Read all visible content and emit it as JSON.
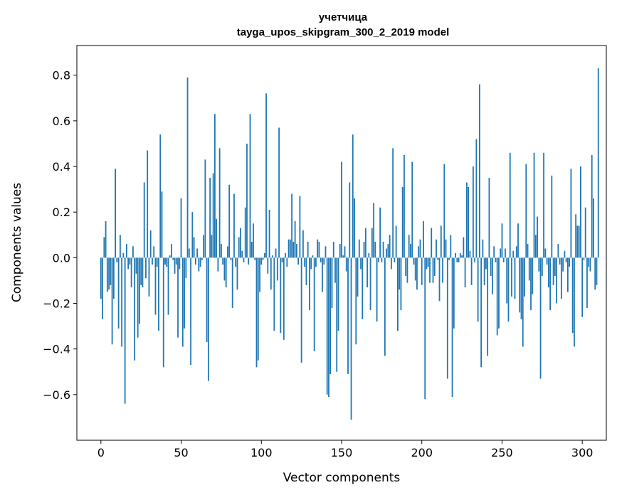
{
  "chart_data": {
    "type": "bar",
    "title_line1": "учетчица",
    "title_line2": "tayga_upos_skipgram_300_2_2019 model",
    "xlabel": "Vector components",
    "ylabel": "Components values",
    "xlim": [
      -15,
      315
    ],
    "ylim": [
      -0.8,
      0.93
    ],
    "xticks": [
      0,
      50,
      100,
      150,
      200,
      250,
      300
    ],
    "yticks": [
      -0.6,
      -0.4,
      -0.2,
      0.0,
      0.2,
      0.4,
      0.6,
      0.8
    ],
    "xtick_labels": [
      "0",
      "50",
      "100",
      "150",
      "200",
      "250",
      "300"
    ],
    "ytick_labels": [
      "−0.6",
      "−0.4",
      "−0.2",
      "0.0",
      "0.2",
      "0.4",
      "0.6",
      "0.8"
    ],
    "bar_color": "#1f77b4",
    "values": [
      -0.18,
      -0.27,
      0.09,
      0.16,
      -0.15,
      -0.14,
      -0.12,
      -0.38,
      -0.18,
      0.39,
      -0.02,
      -0.31,
      0.1,
      -0.39,
      0.02,
      -0.64,
      0.06,
      -0.05,
      -0.03,
      -0.13,
      0.05,
      -0.45,
      -0.07,
      -0.35,
      -0.29,
      -0.12,
      -0.13,
      0.33,
      -0.09,
      0.47,
      -0.17,
      0.12,
      -0.03,
      0.05,
      -0.25,
      -0.04,
      -0.32,
      0.54,
      0.29,
      -0.48,
      -0.03,
      -0.04,
      -0.25,
      0.01,
      0.06,
      -0.01,
      -0.07,
      -0.03,
      -0.35,
      -0.05,
      0.26,
      -0.39,
      -0.31,
      -0.09,
      0.79,
      0.04,
      -0.47,
      0.2,
      0.09,
      -0.03,
      0.04,
      -0.06,
      -0.04,
      -0.01,
      0.1,
      0.43,
      -0.37,
      -0.54,
      0.35,
      0.1,
      0.37,
      0.63,
      0.17,
      -0.06,
      0.48,
      0.06,
      -0.03,
      -0.1,
      -0.13,
      0.05,
      0.32,
      -0.01,
      -0.22,
      0.28,
      -0.04,
      -0.14,
      0.09,
      0.13,
      0.03,
      -0.02,
      0.22,
      0.5,
      -0.03,
      0.63,
      0.07,
      0.15,
      -0.01,
      -0.48,
      -0.45,
      -0.15,
      -0.03,
      -0.01,
      0.02,
      0.72,
      -0.07,
      0.21,
      -0.14,
      0.01,
      -0.32,
      0.04,
      -0.1,
      0.57,
      -0.33,
      -0.02,
      -0.36,
      0.02,
      -0.04,
      0.08,
      0.08,
      0.28,
      0.07,
      0.16,
      0.06,
      -0.03,
      0.27,
      -0.46,
      0.12,
      -0.04,
      -0.12,
      0.07,
      -0.23,
      -0.05,
      0.01,
      -0.41,
      -0.04,
      0.08,
      0.07,
      -0.02,
      -0.15,
      -0.03,
      0.05,
      -0.6,
      -0.61,
      -0.51,
      -0.22,
      0.07,
      -0.11,
      -0.5,
      -0.32,
      0.06,
      0.42,
      0.01,
      0.05,
      -0.06,
      -0.51,
      0.33,
      -0.71,
      0.54,
      0.26,
      -0.38,
      -0.17,
      0.08,
      -0.05,
      -0.27,
      0.07,
      0.13,
      -0.13,
      0.02,
      -0.23,
      0.13,
      0.24,
      0.07,
      -0.28,
      -0.02,
      0.22,
      -0.02,
      0.07,
      -0.43,
      0.04,
      0.06,
      0.1,
      -0.05,
      0.48,
      -0.02,
      0.14,
      -0.32,
      -0.14,
      -0.23,
      0.31,
      0.45,
      -0.08,
      -0.11,
      0.1,
      0.06,
      0.42,
      -0.03,
      -0.1,
      -0.14,
      0.05,
      0.08,
      -0.12,
      0.16,
      -0.62,
      -0.05,
      -0.04,
      -0.11,
      0.13,
      -0.11,
      -0.08,
      0.08,
      -0.01,
      -0.19,
      0.14,
      -0.11,
      0.41,
      0.08,
      -0.53,
      -0.01,
      0.1,
      -0.61,
      -0.31,
      0.02,
      -0.02,
      -0.02,
      0.02,
      0.01,
      0.09,
      -0.13,
      0.33,
      0.31,
      0.03,
      -0.12,
      0.4,
      -0.02,
      0.52,
      -0.28,
      0.76,
      -0.48,
      0.08,
      -0.12,
      -0.05,
      -0.43,
      0.35,
      -0.08,
      -0.16,
      0.05,
      -0.02,
      -0.34,
      -0.31,
      0.04,
      0.15,
      -0.02,
      0.04,
      -0.2,
      -0.28,
      0.46,
      -0.17,
      0.03,
      -0.18,
      0.05,
      0.15,
      -0.24,
      -0.27,
      -0.39,
      -0.17,
      0.41,
      0.06,
      -0.1,
      -0.23,
      -0.16,
      0.46,
      0.1,
      0.18,
      -0.06,
      -0.53,
      -0.08,
      0.46,
      0.04,
      -0.03,
      -0.13,
      -0.23,
      0.36,
      -0.12,
      -0.08,
      -0.2,
      0.06,
      -0.03,
      -0.18,
      -0.06,
      0.03,
      -0.02,
      -0.15,
      -0.04,
      0.39,
      -0.33,
      -0.39,
      0.19,
      0.14,
      0.14,
      0.4,
      -0.26,
      -0.01,
      0.22,
      -0.22,
      -0.04,
      -0.06,
      0.45,
      0.26,
      -0.14,
      -0.12,
      0.83
    ]
  }
}
